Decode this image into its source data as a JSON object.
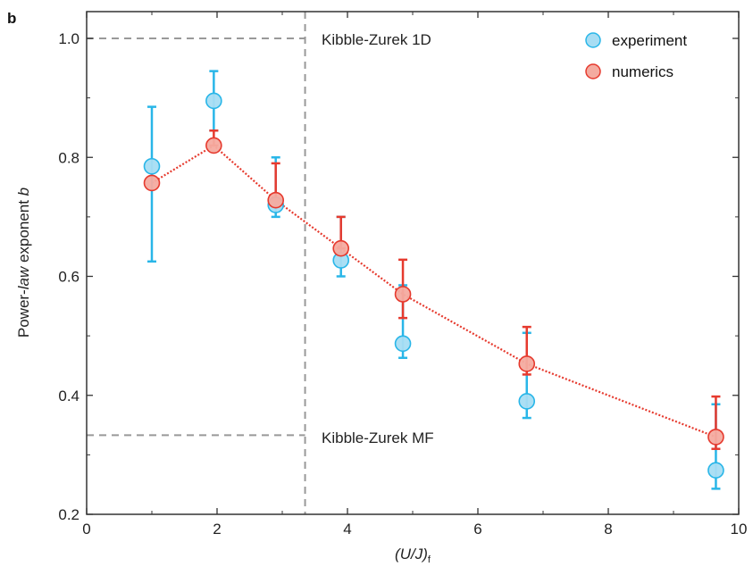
{
  "chart_data": {
    "type": "scatter",
    "panel_label": "b",
    "xlabel": {
      "prefix": "(U/J)",
      "subscript": "f"
    },
    "ylabel": {
      "pre": "Power-",
      "italic1": "law",
      "mid": " exponent ",
      "italic2": "b"
    },
    "xlim": [
      0,
      10
    ],
    "ylim": [
      0.2,
      1.05
    ],
    "x_ticks": [
      0,
      2,
      4,
      6,
      8,
      10
    ],
    "x_tick_labels": [
      "0",
      "2",
      "4",
      "6",
      "8",
      "10"
    ],
    "y_ticks": [
      0.2,
      0.4,
      0.6,
      0.8,
      1.0
    ],
    "y_tick_labels": [
      "0.2",
      "0.4",
      "0.6",
      "0.8",
      "1.0"
    ],
    "grid": false,
    "legend_position": "top-right",
    "series": [
      {
        "name": "experiment",
        "color": "#29b6e8",
        "fill": "#a7ddf3",
        "x": [
          1.0,
          1.95,
          2.9,
          3.9,
          4.85,
          6.75,
          9.65
        ],
        "y": [
          0.785,
          0.895,
          0.72,
          0.627,
          0.487,
          0.39,
          0.274
        ],
        "err_low": [
          0.625,
          0.845,
          0.7,
          0.6,
          0.463,
          0.362,
          0.243
        ],
        "err_high": [
          0.885,
          0.945,
          0.8,
          0.7,
          0.585,
          0.505,
          0.385
        ],
        "connected": false
      },
      {
        "name": "numerics",
        "color": "#e63a2e",
        "fill": "#f4aba0",
        "x": [
          1.0,
          1.95,
          2.9,
          3.9,
          4.85,
          6.75,
          9.65
        ],
        "y": [
          0.757,
          0.82,
          0.728,
          0.647,
          0.57,
          0.453,
          0.33
        ],
        "err_low": [
          0.757,
          0.82,
          0.728,
          0.647,
          0.53,
          0.435,
          0.31
        ],
        "err_high": [
          0.757,
          0.845,
          0.79,
          0.7,
          0.628,
          0.515,
          0.398
        ],
        "connected": true
      }
    ],
    "reference_lines": [
      {
        "orientation": "horizontal",
        "value": 1.0,
        "label": "Kibble-Zurek 1D",
        "x_end": 3.35
      },
      {
        "orientation": "horizontal",
        "value": 0.333,
        "label": "Kibble-Zurek MF",
        "x_end": 3.35
      },
      {
        "orientation": "vertical",
        "value": 3.35
      }
    ]
  }
}
